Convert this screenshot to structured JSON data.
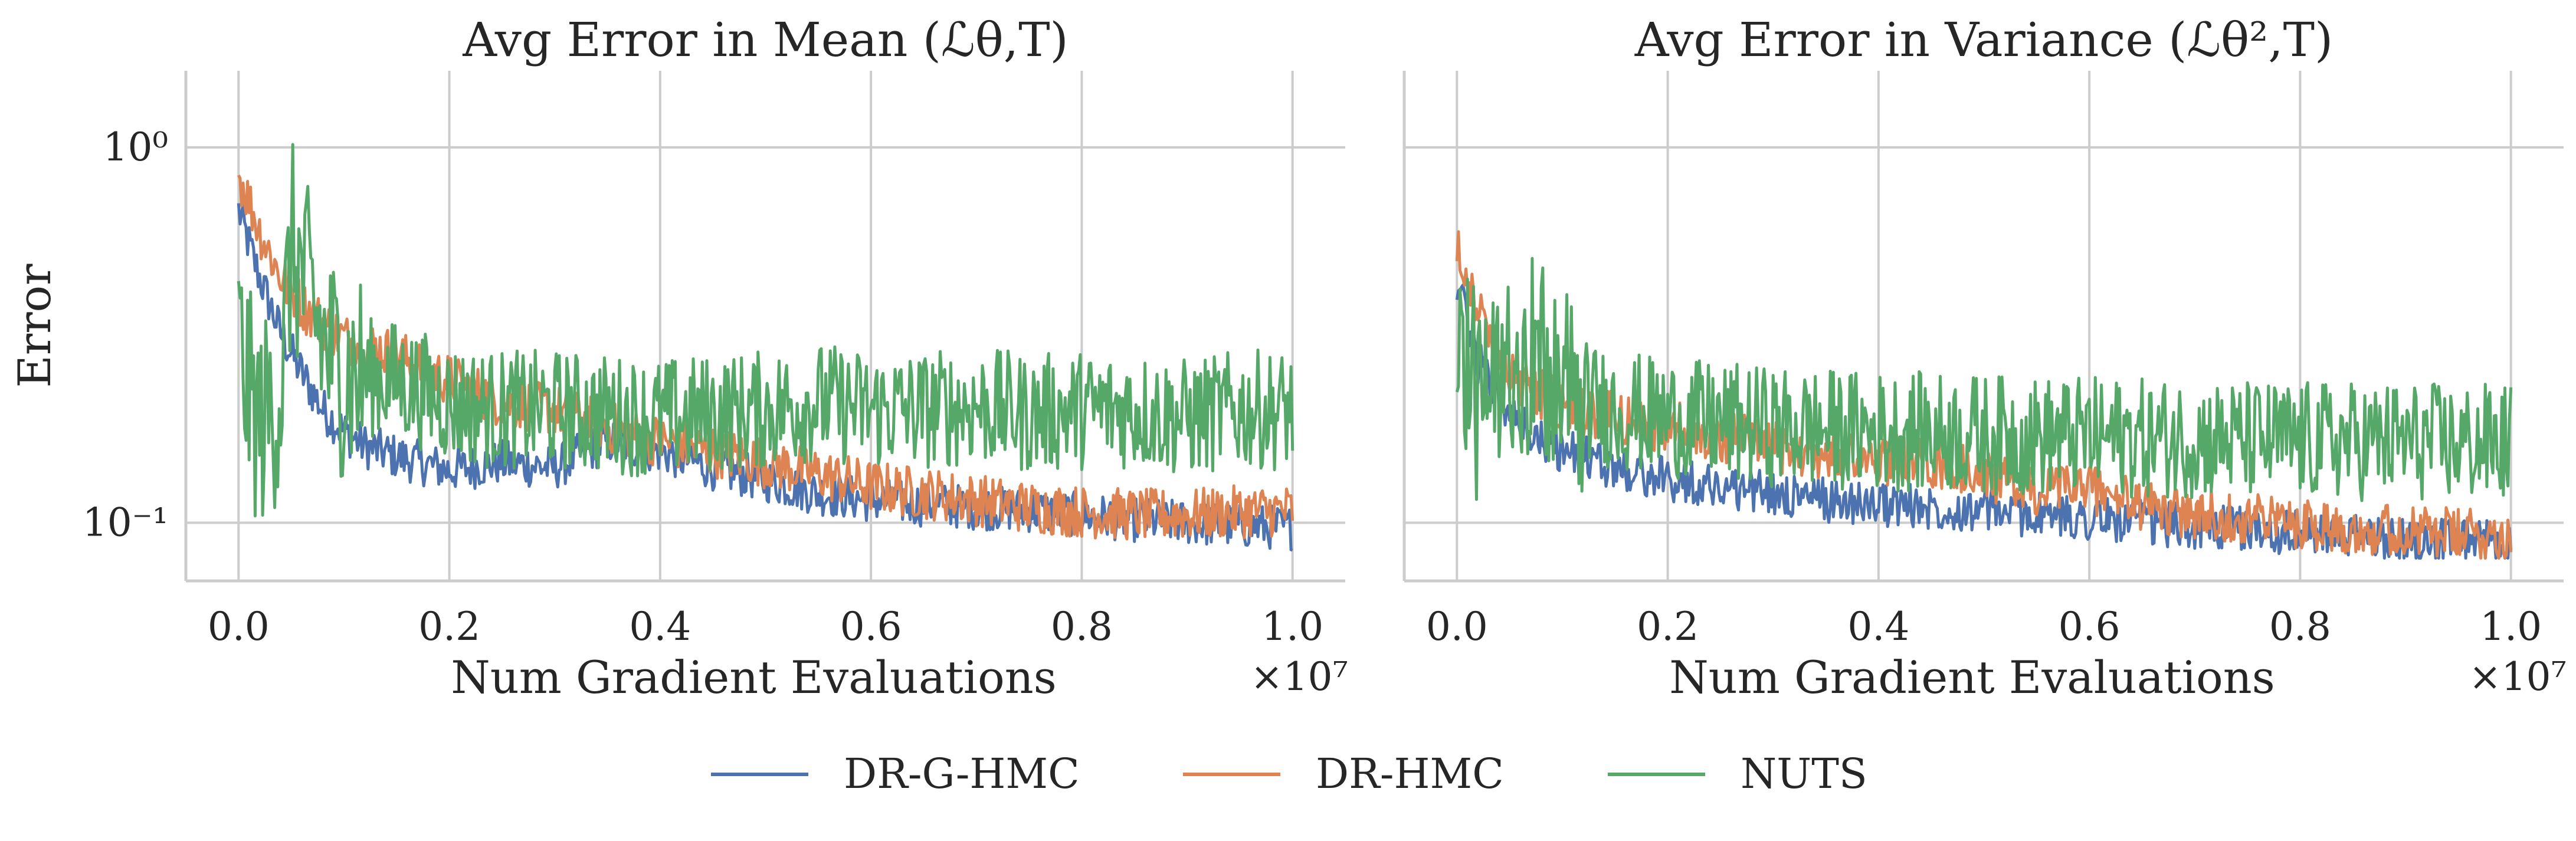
{
  "chart_data": [
    {
      "type": "line",
      "title": "Avg Error in Mean (ℒθ,T)",
      "xlabel": "Num Gradient Evaluations",
      "ylabel": "Error",
      "x_scale_label": "×10⁷",
      "yscale": "log",
      "xlim": [
        -0.05,
        1.05
      ],
      "ylim": [
        0.07,
        1.6
      ],
      "xticks": [
        "0.0",
        "0.2",
        "0.4",
        "0.6",
        "0.8",
        "1.0"
      ],
      "yticks": [
        "10⁰",
        "10⁻¹"
      ],
      "grid": true,
      "series": [
        {
          "name": "DR-G-HMC",
          "color": "#4c72b0",
          "x": [
            0.0,
            0.01,
            0.02,
            0.04,
            0.06,
            0.08,
            0.1,
            0.12,
            0.15,
            0.2,
            0.25,
            0.3,
            0.35,
            0.4,
            0.45,
            0.5,
            0.55,
            0.6,
            0.65,
            0.7,
            0.75,
            0.8,
            0.85,
            0.9,
            0.95,
            1.0
          ],
          "y": [
            0.68,
            0.55,
            0.45,
            0.32,
            0.25,
            0.2,
            0.175,
            0.16,
            0.15,
            0.138,
            0.145,
            0.14,
            0.165,
            0.155,
            0.14,
            0.13,
            0.12,
            0.115,
            0.112,
            0.11,
            0.108,
            0.105,
            0.102,
            0.1,
            0.098,
            0.097
          ]
        },
        {
          "name": "DR-HMC",
          "color": "#dd8452",
          "x": [
            0.0,
            0.01,
            0.02,
            0.04,
            0.06,
            0.08,
            0.1,
            0.15,
            0.2,
            0.25,
            0.3,
            0.35,
            0.4,
            0.45,
            0.5,
            0.55,
            0.6,
            0.65,
            0.7,
            0.75,
            0.8,
            0.85,
            0.9,
            0.95,
            1.0
          ],
          "y": [
            0.85,
            0.72,
            0.6,
            0.45,
            0.38,
            0.34,
            0.31,
            0.28,
            0.24,
            0.21,
            0.2,
            0.18,
            0.165,
            0.155,
            0.145,
            0.135,
            0.125,
            0.12,
            0.115,
            0.11,
            0.107,
            0.105,
            0.105,
            0.107,
            0.108
          ]
        },
        {
          "name": "NUTS",
          "color": "#55a868",
          "x": [
            0.0,
            0.01,
            0.02,
            0.03,
            0.04,
            0.05,
            0.06,
            0.07,
            0.08,
            0.1,
            0.15,
            0.2,
            0.24,
            0.3,
            0.35,
            0.4,
            0.45,
            0.5,
            0.55,
            0.6,
            0.65,
            0.7,
            0.75,
            0.8,
            0.85,
            0.9,
            0.95,
            1.0
          ],
          "y": [
            0.3,
            0.22,
            0.18,
            0.2,
            0.22,
            0.55,
            0.45,
            0.38,
            0.3,
            0.25,
            0.24,
            0.21,
            0.2,
            0.2,
            0.195,
            0.19,
            0.195,
            0.2,
            0.21,
            0.2,
            0.2,
            0.205,
            0.195,
            0.2,
            0.2,
            0.19,
            0.2,
            0.2
          ]
        }
      ]
    },
    {
      "type": "line",
      "title": "Avg Error in Variance (ℒθ²,T)",
      "xlabel": "Num Gradient Evaluations",
      "ylabel": "",
      "x_scale_label": "×10⁷",
      "yscale": "log",
      "xlim": [
        -0.05,
        1.05
      ],
      "ylim": [
        0.07,
        1.6
      ],
      "xticks": [
        "0.0",
        "0.2",
        "0.4",
        "0.6",
        "0.8",
        "1.0"
      ],
      "yticks": [],
      "grid": true,
      "series": [
        {
          "name": "DR-G-HMC",
          "color": "#4c72b0",
          "x": [
            0.0,
            0.01,
            0.02,
            0.04,
            0.06,
            0.08,
            0.1,
            0.15,
            0.2,
            0.25,
            0.3,
            0.35,
            0.4,
            0.45,
            0.5,
            0.55,
            0.6,
            0.65,
            0.7,
            0.75,
            0.8,
            0.85,
            0.9,
            0.95,
            1.0
          ],
          "y": [
            0.45,
            0.33,
            0.27,
            0.21,
            0.18,
            0.165,
            0.155,
            0.14,
            0.13,
            0.125,
            0.12,
            0.115,
            0.112,
            0.11,
            0.108,
            0.105,
            0.103,
            0.1,
            0.098,
            0.096,
            0.094,
            0.092,
            0.09,
            0.089,
            0.088
          ]
        },
        {
          "name": "DR-HMC",
          "color": "#dd8452",
          "x": [
            0.0,
            0.01,
            0.02,
            0.04,
            0.06,
            0.08,
            0.1,
            0.15,
            0.2,
            0.25,
            0.3,
            0.35,
            0.4,
            0.45,
            0.5,
            0.55,
            0.6,
            0.65,
            0.7,
            0.75,
            0.8,
            0.85,
            0.9,
            0.95,
            1.0
          ],
          "y": [
            0.58,
            0.45,
            0.37,
            0.28,
            0.24,
            0.22,
            0.2,
            0.19,
            0.18,
            0.17,
            0.16,
            0.15,
            0.148,
            0.145,
            0.135,
            0.12,
            0.125,
            0.11,
            0.105,
            0.103,
            0.1,
            0.097,
            0.095,
            0.093,
            0.092
          ]
        },
        {
          "name": "NUTS",
          "color": "#55a868",
          "x": [
            0.0,
            0.01,
            0.02,
            0.03,
            0.04,
            0.05,
            0.06,
            0.07,
            0.08,
            0.1,
            0.15,
            0.2,
            0.25,
            0.3,
            0.35,
            0.4,
            0.45,
            0.5,
            0.55,
            0.6,
            0.65,
            0.7,
            0.75,
            0.8,
            0.85,
            0.9,
            0.95,
            1.0
          ],
          "y": [
            0.4,
            0.25,
            0.2,
            0.22,
            0.2,
            0.32,
            0.28,
            0.3,
            0.26,
            0.22,
            0.2,
            0.19,
            0.185,
            0.18,
            0.178,
            0.175,
            0.175,
            0.172,
            0.17,
            0.17,
            0.168,
            0.168,
            0.166,
            0.165,
            0.165,
            0.165,
            0.163,
            0.163
          ]
        }
      ]
    }
  ],
  "legend": {
    "placement": "bottom-center",
    "items": [
      {
        "label": "DR-G-HMC",
        "color": "#4c72b0"
      },
      {
        "label": "DR-HMC",
        "color": "#dd8452"
      },
      {
        "label": "NUTS",
        "color": "#55a868"
      }
    ]
  }
}
